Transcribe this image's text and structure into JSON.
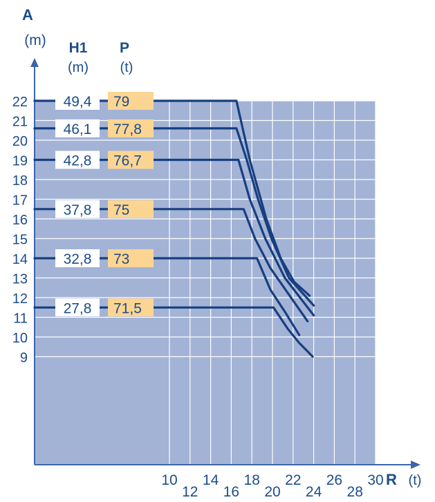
{
  "chart_data": {
    "type": "line",
    "y_axis": {
      "label": "A",
      "unit": "(m)",
      "ticks": [
        22,
        21,
        20,
        19,
        18,
        17,
        16,
        15,
        14,
        13,
        12,
        11,
        10,
        9
      ]
    },
    "x_axis": {
      "label": "R",
      "unit": "(t)",
      "ticks": [
        10,
        12,
        14,
        16,
        18,
        20,
        22,
        24,
        26,
        28,
        30
      ]
    },
    "columns": {
      "h1_title": "H1",
      "h1_unit": "(m)",
      "p_title": "P",
      "p_unit": "(t)"
    },
    "series": [
      {
        "h1": "49,4",
        "p": "79",
        "y": 22,
        "points": [
          [
            16.5,
            22
          ],
          [
            17.8,
            19
          ],
          [
            19.4,
            16
          ],
          [
            20.8,
            14
          ],
          [
            22.1,
            12.8
          ],
          [
            23.6,
            12.1
          ]
        ]
      },
      {
        "h1": "46,1",
        "p": "77,8",
        "y": 20.6,
        "points": [
          [
            16.5,
            20.6
          ],
          [
            17.5,
            19
          ],
          [
            18.6,
            17
          ],
          [
            19.9,
            15
          ],
          [
            21.6,
            13
          ],
          [
            24.0,
            11.6
          ]
        ]
      },
      {
        "h1": "42,8",
        "p": "76,7",
        "y": 19,
        "points": [
          [
            16.7,
            19
          ],
          [
            17.8,
            17
          ],
          [
            19.3,
            15
          ],
          [
            21.2,
            13
          ],
          [
            24.0,
            11.1
          ]
        ]
      },
      {
        "h1": "37,8",
        "p": "75",
        "y": 16.5,
        "points": [
          [
            17.2,
            16.5
          ],
          [
            18.3,
            15
          ],
          [
            19.8,
            13.5
          ],
          [
            21.8,
            12
          ],
          [
            23.4,
            10.8
          ]
        ]
      },
      {
        "h1": "32,8",
        "p": "73",
        "y": 14,
        "points": [
          [
            18.5,
            14
          ],
          [
            19.8,
            12.4
          ],
          [
            21.3,
            11.2
          ],
          [
            22.6,
            10.1
          ]
        ]
      },
      {
        "h1": "27,8",
        "p": "71,5",
        "y": 11.5,
        "points": [
          [
            20.1,
            11.5
          ],
          [
            21.5,
            10.4
          ],
          [
            22.6,
            9.7
          ],
          [
            23.9,
            9.0
          ]
        ]
      }
    ],
    "colors": {
      "plot_bg": "#a3b3d6",
      "grid": "#ffffff",
      "line": "#173f80",
      "text": "#1c4d8c",
      "p_box": "#fcd592",
      "h_box": "#ffffff",
      "axis": "#3c64a8"
    }
  }
}
